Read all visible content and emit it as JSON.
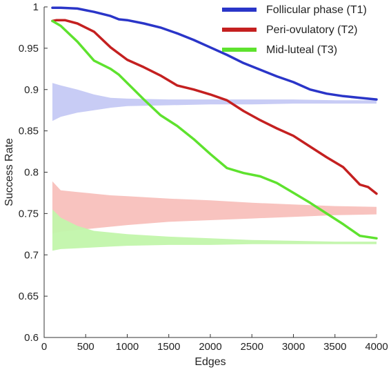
{
  "chart_data": {
    "type": "line",
    "xlabel": "Edges",
    "ylabel": "Success Rate",
    "xlim": [
      0,
      4000
    ],
    "ylim": [
      0.6,
      1.0
    ],
    "x_ticks": [
      0,
      500,
      1000,
      1500,
      2000,
      2500,
      3000,
      3500,
      4000
    ],
    "y_ticks": [
      0.6,
      0.65,
      0.7,
      0.75,
      0.8,
      0.85,
      0.9,
      0.95,
      1
    ],
    "x_tick_labels": [
      "0",
      "500",
      "1000",
      "1500",
      "2000",
      "2500",
      "3000",
      "3500",
      "4000"
    ],
    "y_tick_labels": [
      "0.6",
      "0.65",
      "0.7",
      "0.75",
      "0.8",
      "0.85",
      "0.9",
      "0.95",
      "1"
    ],
    "grid": false,
    "legend_position": "top-right",
    "series": [
      {
        "name": "Follicular phase (T1)",
        "color": "#2a35c8",
        "x": [
          100,
          200,
          400,
          600,
          800,
          900,
          1000,
          1200,
          1400,
          1600,
          1800,
          2000,
          2200,
          2400,
          2600,
          2800,
          3000,
          3200,
          3400,
          3600,
          3800,
          4000
        ],
        "y": [
          0.999,
          0.999,
          0.998,
          0.994,
          0.989,
          0.985,
          0.984,
          0.98,
          0.975,
          0.968,
          0.96,
          0.951,
          0.942,
          0.932,
          0.924,
          0.916,
          0.909,
          0.9,
          0.895,
          0.892,
          0.89,
          0.888
        ]
      },
      {
        "name": "Peri-ovulatory (T2)",
        "color": "#c42020",
        "x": [
          100,
          150,
          250,
          400,
          600,
          800,
          1000,
          1200,
          1400,
          1600,
          1800,
          2000,
          2200,
          2400,
          2600,
          2800,
          3000,
          3200,
          3400,
          3600,
          3800,
          3900,
          4000
        ],
        "y": [
          0.983,
          0.984,
          0.984,
          0.98,
          0.97,
          0.951,
          0.936,
          0.927,
          0.917,
          0.905,
          0.9,
          0.894,
          0.887,
          0.874,
          0.863,
          0.853,
          0.844,
          0.831,
          0.818,
          0.806,
          0.785,
          0.782,
          0.774
        ]
      },
      {
        "name": "Mid-luteal (T3)",
        "color": "#5ee22e",
        "x": [
          100,
          200,
          400,
          600,
          800,
          900,
          1000,
          1200,
          1400,
          1600,
          1800,
          2000,
          2200,
          2400,
          2600,
          2800,
          3000,
          3200,
          3400,
          3600,
          3800,
          4000
        ],
        "y": [
          0.983,
          0.977,
          0.958,
          0.935,
          0.925,
          0.918,
          0.908,
          0.888,
          0.869,
          0.856,
          0.84,
          0.822,
          0.805,
          0.799,
          0.795,
          0.787,
          0.775,
          0.763,
          0.75,
          0.737,
          0.723,
          0.72
        ]
      }
    ],
    "bands": [
      {
        "color": "#c5c9f4",
        "x": [
          100,
          200,
          400,
          600,
          800,
          1000,
          1500,
          2000,
          2500,
          3000,
          3500,
          4000
        ],
        "upper": [
          0.908,
          0.905,
          0.9,
          0.894,
          0.89,
          0.889,
          0.888,
          0.888,
          0.888,
          0.888,
          0.887,
          0.887
        ],
        "lower": [
          0.862,
          0.867,
          0.872,
          0.875,
          0.878,
          0.88,
          0.881,
          0.882,
          0.882,
          0.883,
          0.883,
          0.883
        ]
      },
      {
        "color": "#f8c0bc",
        "x": [
          100,
          200,
          400,
          600,
          800,
          1000,
          1500,
          2000,
          2500,
          3000,
          3500,
          4000
        ],
        "upper": [
          0.789,
          0.778,
          0.776,
          0.774,
          0.772,
          0.771,
          0.768,
          0.766,
          0.763,
          0.761,
          0.759,
          0.758
        ],
        "lower": [
          0.726,
          0.728,
          0.73,
          0.732,
          0.734,
          0.736,
          0.74,
          0.742,
          0.744,
          0.746,
          0.748,
          0.749
        ]
      },
      {
        "color": "#c2f5ab",
        "x": [
          100,
          200,
          400,
          600,
          800,
          1000,
          1500,
          2000,
          2500,
          3000,
          3500,
          4000
        ],
        "upper": [
          0.755,
          0.745,
          0.735,
          0.729,
          0.727,
          0.725,
          0.722,
          0.72,
          0.718,
          0.717,
          0.716,
          0.716
        ],
        "lower": [
          0.705,
          0.707,
          0.708,
          0.709,
          0.71,
          0.711,
          0.712,
          0.712,
          0.713,
          0.713,
          0.713,
          0.713
        ]
      }
    ]
  }
}
